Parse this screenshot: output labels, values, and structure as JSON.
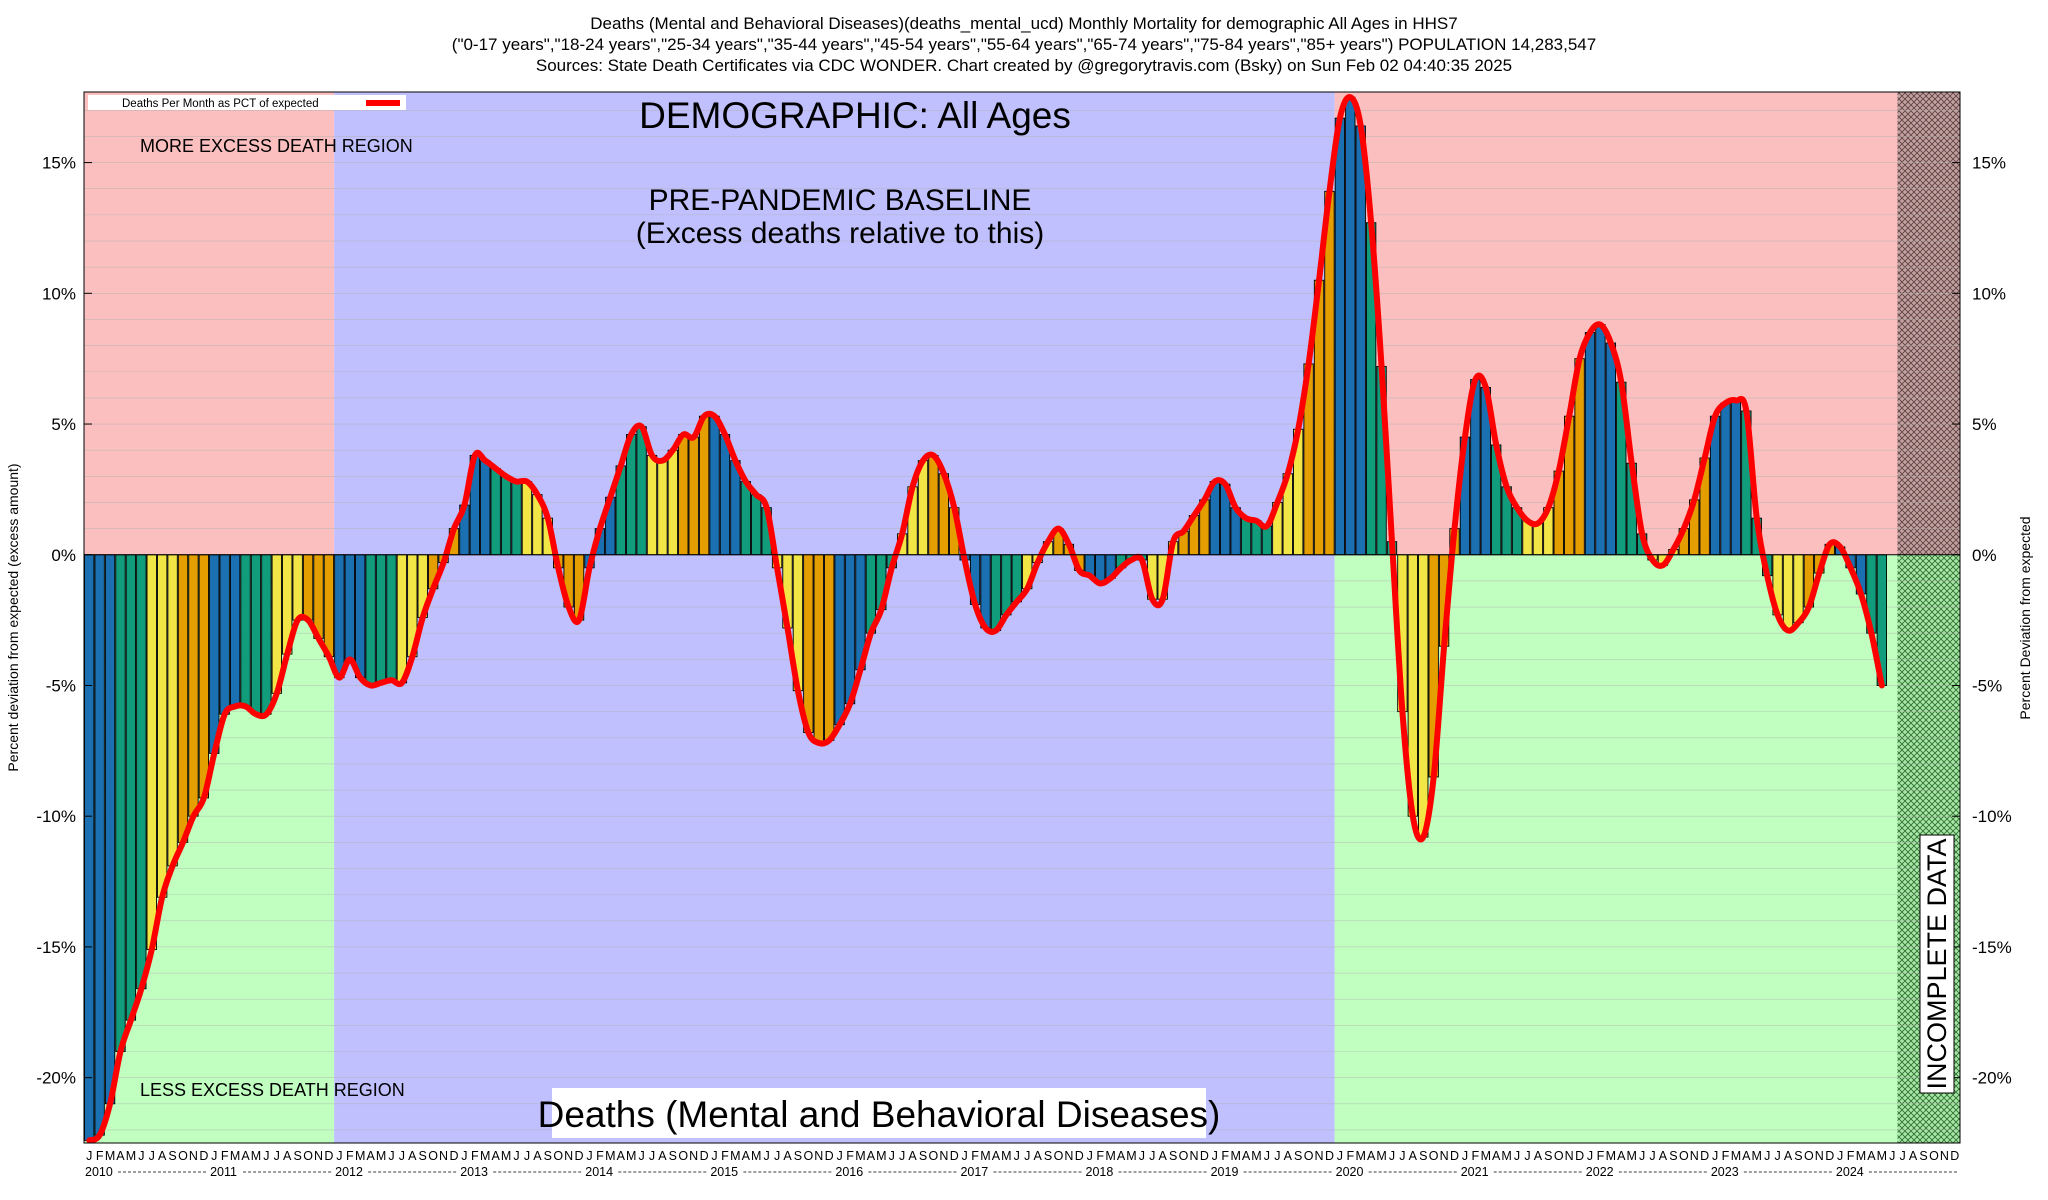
{
  "header": {
    "line1": "Deaths (Mental and Behavioral Diseases)(deaths_mental_ucd) Monthly Mortality for demographic All Ages in HHS7",
    "line2": "(\"0-17 years\",\"18-24 years\",\"25-34 years\",\"35-44 years\",\"45-54 years\",\"55-64 years\",\"65-74 years\",\"75-84 years\",\"85+ years\") POPULATION 14,283,547",
    "line3": "Sources: State Death Certificates via CDC WONDER.                Chart created by @gregorytravis.com (Bsky) on Sun Feb 02 04:40:35 2025"
  },
  "chart_data": {
    "type": "bar",
    "title": "Deaths (Mental and Behavioral Diseases)",
    "subtitle": "DEMOGRAPHIC: All Ages",
    "ylabel_left": "Percent deviation from expected (excess amount)",
    "ylabel_right": "Percent Deviation from expected",
    "legend": "Deaths Per Month as PCT of expected",
    "legend_position": "top-left",
    "ylim": [
      -22.5,
      17.7
    ],
    "yticks": [
      -20,
      -15,
      -10,
      -5,
      0,
      5,
      10,
      15
    ],
    "ytick_labels": [
      "-20%",
      "-15%",
      "-10%",
      "-5%",
      "0%",
      "5%",
      "10%",
      "15%"
    ],
    "years": [
      "2010",
      "2011",
      "2012",
      "2013",
      "2014",
      "2015",
      "2016",
      "2017",
      "2018",
      "2019",
      "2020",
      "2021",
      "2022",
      "2023",
      "2024"
    ],
    "month_letters": [
      "J",
      "F",
      "M",
      "A",
      "M",
      "J",
      "J",
      "A",
      "S",
      "O",
      "N",
      "D"
    ],
    "regions": [
      {
        "label": "MORE EXCESS DEATH REGION",
        "from": "2010-01",
        "to": "2011-12",
        "side": "above"
      },
      {
        "label": "LESS EXCESS DEATH REGION",
        "from": "2010-01",
        "to": "2011-12",
        "side": "below"
      },
      {
        "label": "PRE-PANDEMIC BASELINE",
        "sublabel": "(Excess deaths relative to this)",
        "from": "2012-01",
        "to": "2019-12"
      },
      {
        "label": "INCOMPLETE DATA",
        "from": "2024-07",
        "to": "2024-12"
      }
    ],
    "colors": {
      "more_region": "#fbbfbf",
      "less_region": "#c0ffc0",
      "baseline_region": "#c0c0ff",
      "line": "#ff0000",
      "bar_palette": [
        "#1a70b0",
        "#119c7c",
        "#f2e646",
        "#e59e00"
      ]
    },
    "x_start": "2010-01",
    "values": [
      -22.4,
      -22.2,
      -21.0,
      -19.0,
      -17.8,
      -16.6,
      -15.1,
      -13.1,
      -11.9,
      -11.0,
      -10.0,
      -9.3,
      -7.6,
      -6.1,
      -5.8,
      -5.8,
      -6.1,
      -6.1,
      -5.3,
      -3.8,
      -2.5,
      -2.5,
      -3.2,
      -3.9,
      -4.7,
      -4.0,
      -4.7,
      -5.0,
      -4.9,
      -4.8,
      -4.9,
      -3.9,
      -2.4,
      -1.3,
      -0.3,
      1.0,
      1.9,
      3.8,
      3.6,
      3.3,
      3.0,
      2.8,
      2.8,
      2.3,
      1.4,
      -0.5,
      -2.0,
      -2.5,
      -0.5,
      1.0,
      2.2,
      3.4,
      4.6,
      4.9,
      3.8,
      3.6,
      4.0,
      4.6,
      4.5,
      5.3,
      5.3,
      4.6,
      3.6,
      2.8,
      2.3,
      1.8,
      -0.5,
      -2.8,
      -5.2,
      -6.8,
      -7.2,
      -7.1,
      -6.5,
      -5.7,
      -4.4,
      -3.0,
      -2.1,
      -0.5,
      0.8,
      2.6,
      3.6,
      3.8,
      3.1,
      1.8,
      -0.2,
      -1.9,
      -2.8,
      -2.9,
      -2.3,
      -1.8,
      -1.3,
      -0.3,
      0.5,
      1.0,
      0.4,
      -0.6,
      -0.8,
      -1.1,
      -0.9,
      -0.5,
      -0.2,
      -0.2,
      -1.7,
      -1.7,
      0.5,
      0.9,
      1.5,
      2.1,
      2.8,
      2.7,
      1.8,
      1.4,
      1.3,
      1.1,
      2.0,
      3.1,
      4.8,
      7.3,
      10.5,
      13.9,
      16.7,
      17.5,
      16.4,
      12.7,
      7.2,
      0.5,
      -6.0,
      -10.0,
      -10.8,
      -8.5,
      -3.5,
      1.0,
      4.5,
      6.7,
      6.4,
      4.2,
      2.6,
      1.8,
      1.3,
      1.2,
      1.8,
      3.2,
      5.3,
      7.5,
      8.5,
      8.8,
      8.1,
      6.6,
      3.5,
      0.8,
      -0.2,
      -0.4,
      0.2,
      1.0,
      2.1,
      3.7,
      5.3,
      5.8,
      5.9,
      5.5,
      1.4,
      -0.8,
      -2.3,
      -2.9,
      -2.6,
      -2.0,
      -0.7,
      0.4,
      0.3,
      -0.5,
      -1.5,
      -3.0,
      -5.0
    ]
  }
}
